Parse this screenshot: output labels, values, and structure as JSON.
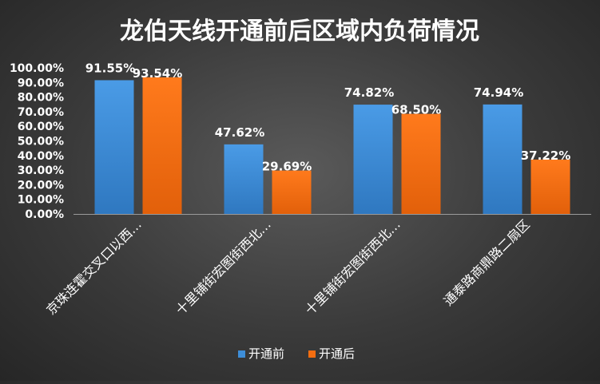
{
  "chart_data": {
    "type": "bar",
    "title": "龙伯天线开通前后区域内负荷情况",
    "categories": [
      "京珠连霍交叉口以西…",
      "十里铺街宏图街西北…",
      "十里铺街宏图街西北…",
      "通泰路商鼎路二扇区"
    ],
    "series": [
      {
        "name": "开通前",
        "values": [
          91.55,
          47.62,
          74.82,
          74.94
        ],
        "labels": [
          "91.55%",
          "47.62%",
          "74.82%",
          "74.94%"
        ],
        "color": "#3e8ed8"
      },
      {
        "name": "开通后",
        "values": [
          93.54,
          29.69,
          68.5,
          37.22
        ],
        "labels": [
          "93.54%",
          "29.69%",
          "68.50%",
          "37.22%"
        ],
        "color": "#f46d10"
      }
    ],
    "yticks": [
      "0.00%",
      "10.00%",
      "20.00%",
      "30.00%",
      "40.00%",
      "50.00%",
      "60.00%",
      "70.00%",
      "80.00%",
      "90.00%",
      "100.00%"
    ],
    "ylim": [
      0,
      100
    ],
    "legend_position": "bottom",
    "grid": false
  }
}
